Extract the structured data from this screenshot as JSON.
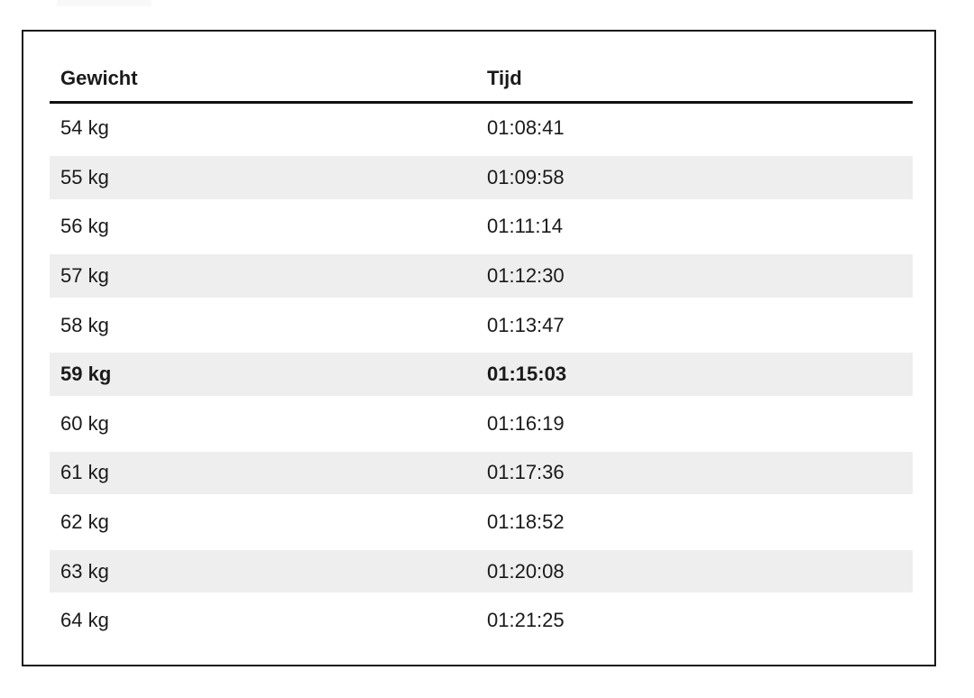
{
  "page": {
    "background": "#ffffff",
    "top_artifact_color": "#f8f8f8"
  },
  "panel": {
    "border_color": "#1a1a1a"
  },
  "table": {
    "headers": [
      {
        "key": "gewicht",
        "label": "Gewicht"
      },
      {
        "key": "tijd",
        "label": "Tijd"
      }
    ],
    "rows": [
      {
        "gewicht": "54 kg",
        "tijd": "01:08:41",
        "highlight": false
      },
      {
        "gewicht": "55 kg",
        "tijd": "01:09:58",
        "highlight": false
      },
      {
        "gewicht": "56 kg",
        "tijd": "01:11:14",
        "highlight": false
      },
      {
        "gewicht": "57 kg",
        "tijd": "01:12:30",
        "highlight": false
      },
      {
        "gewicht": "58 kg",
        "tijd": "01:13:47",
        "highlight": false
      },
      {
        "gewicht": "59 kg",
        "tijd": "01:15:03",
        "highlight": true
      },
      {
        "gewicht": "60 kg",
        "tijd": "01:16:19",
        "highlight": false
      },
      {
        "gewicht": "61 kg",
        "tijd": "01:17:36",
        "highlight": false
      },
      {
        "gewicht": "62 kg",
        "tijd": "01:18:52",
        "highlight": false
      },
      {
        "gewicht": "63 kg",
        "tijd": "01:20:08",
        "highlight": false
      },
      {
        "gewicht": "64 kg",
        "tijd": "01:21:25",
        "highlight": false
      }
    ],
    "stripe_color": "#eeeeee",
    "text_color": "#1a1a1a",
    "header_rule_color": "#111111"
  }
}
